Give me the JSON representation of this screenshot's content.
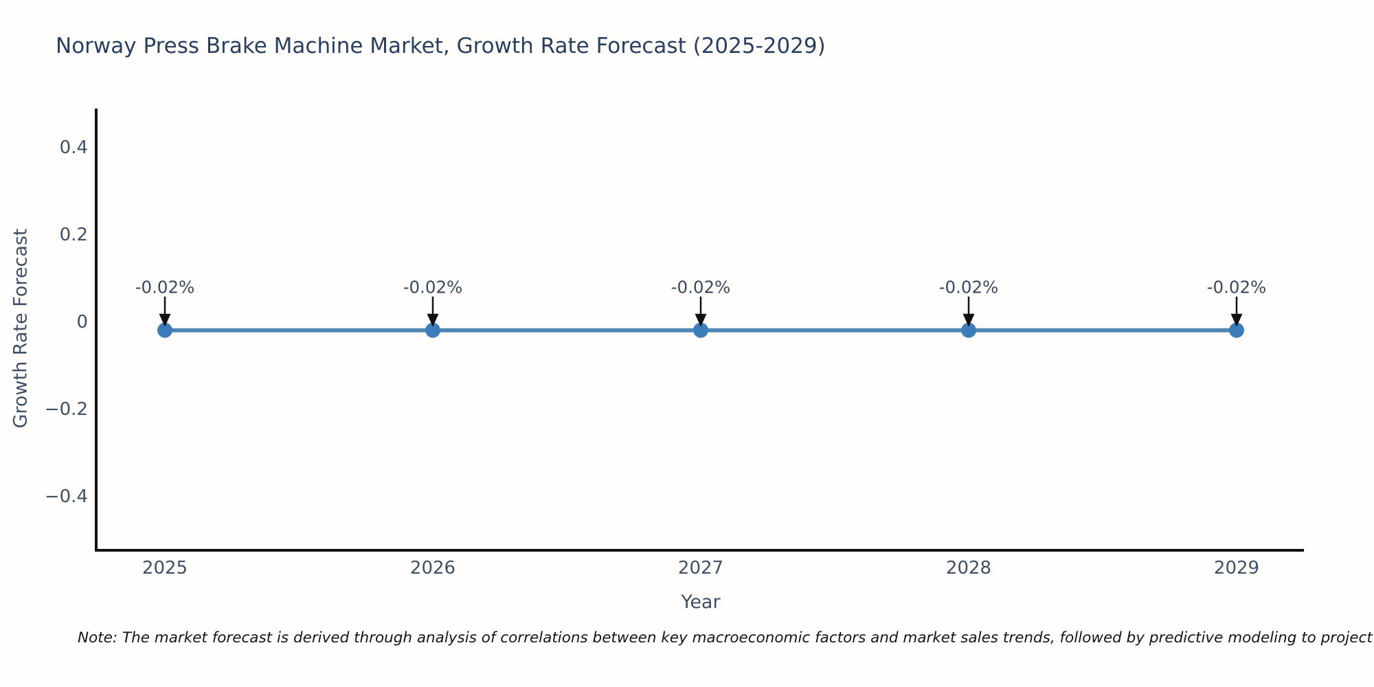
{
  "page": {
    "background": "#fffefc"
  },
  "chart_data": {
    "type": "line",
    "title": "Norway Press Brake Machine Market, Growth Rate Forecast (2025-2029)",
    "xlabel": "Year",
    "ylabel": "Growth Rate Forecast",
    "categories": [
      "2025",
      "2026",
      "2027",
      "2028",
      "2029"
    ],
    "series": [
      {
        "name": "Growth Rate Forecast",
        "values": [
          -0.02,
          -0.02,
          -0.02,
          -0.02,
          -0.02
        ]
      }
    ],
    "point_labels": [
      "-0.02%",
      "-0.02%",
      "-0.02%",
      "-0.02%",
      "-0.02%"
    ],
    "y_ticks": [
      0.4,
      0.2,
      0,
      -0.2,
      -0.4
    ],
    "y_tick_labels": [
      "0.4",
      "0.2",
      "0",
      "−0.2",
      "−0.4"
    ],
    "ylim": [
      -0.52,
      0.49
    ],
    "grid": false,
    "legend": "none",
    "line_color": "#4e87b6",
    "marker_color": "#3c7cba",
    "arrow_color": "#111111",
    "spine_color": "#111111",
    "title_color": "#2a3f5f",
    "tick_label_color": "#3f5066",
    "annotation_color": "#3a4a5e"
  },
  "note": {
    "text": "Note: The market forecast is derived through analysis of correlations between key macroeconomic factors and market sales trends, followed by predictive modeling to project future sales."
  }
}
